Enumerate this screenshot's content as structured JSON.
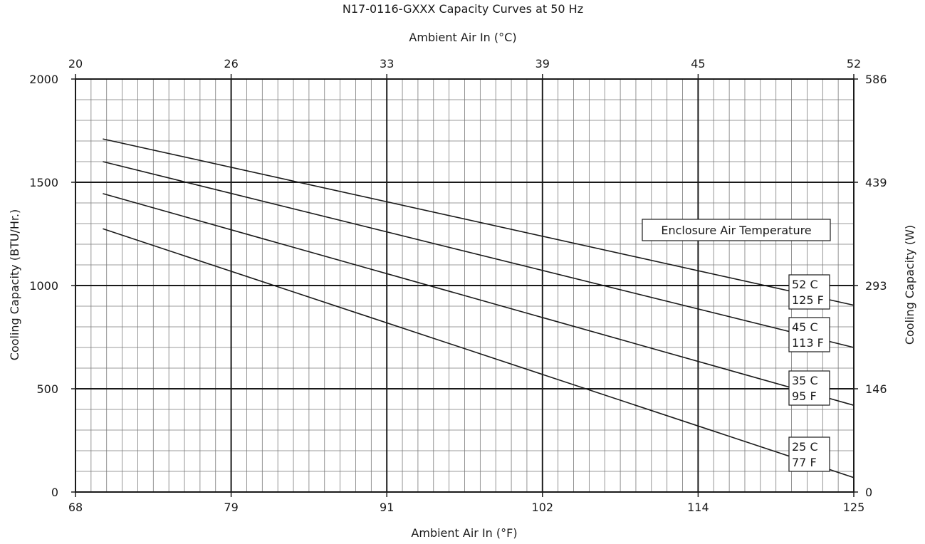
{
  "chart_data": {
    "type": "line",
    "title": "N17-0116-GXXX Capacity Curves at 50 Hz",
    "xlabel": "Ambient Air In (°F)",
    "x2label": "Ambient Air In (°C)",
    "ylabel": "Cooling Capacity (BTU/Hr.)",
    "y2label": "Cooling Capacity (W)",
    "xlim": [
      68,
      125
    ],
    "ylim": [
      0,
      2000
    ],
    "x_ticks": [
      "68",
      "79",
      "91",
      "102",
      "114",
      "125"
    ],
    "x2_ticks": [
      "20",
      "26",
      "33",
      "39",
      "45",
      "52"
    ],
    "y_ticks": [
      "0",
      "500",
      "1000",
      "1500",
      "2000"
    ],
    "y2_ticks": [
      "0",
      "146",
      "293",
      "439",
      "586"
    ],
    "grid": true,
    "legend_title": "Enclosure Air Temperature",
    "series": [
      {
        "name": "52 C / 125 F",
        "label_lines": [
          "52 C",
          "125 F"
        ],
        "x": [
          70,
          125
        ],
        "y": [
          1710,
          905
        ]
      },
      {
        "name": "45 C / 113 F",
        "label_lines": [
          "45 C",
          "113 F"
        ],
        "x": [
          70,
          125
        ],
        "y": [
          1600,
          700
        ]
      },
      {
        "name": "35 C / 95 F",
        "label_lines": [
          "35 C",
          "95 F"
        ],
        "x": [
          70,
          125
        ],
        "y": [
          1445,
          420
        ]
      },
      {
        "name": "25 C / 77 F",
        "label_lines": [
          "25 C",
          "77 F"
        ],
        "x": [
          70,
          125
        ],
        "y": [
          1275,
          70
        ]
      }
    ]
  }
}
